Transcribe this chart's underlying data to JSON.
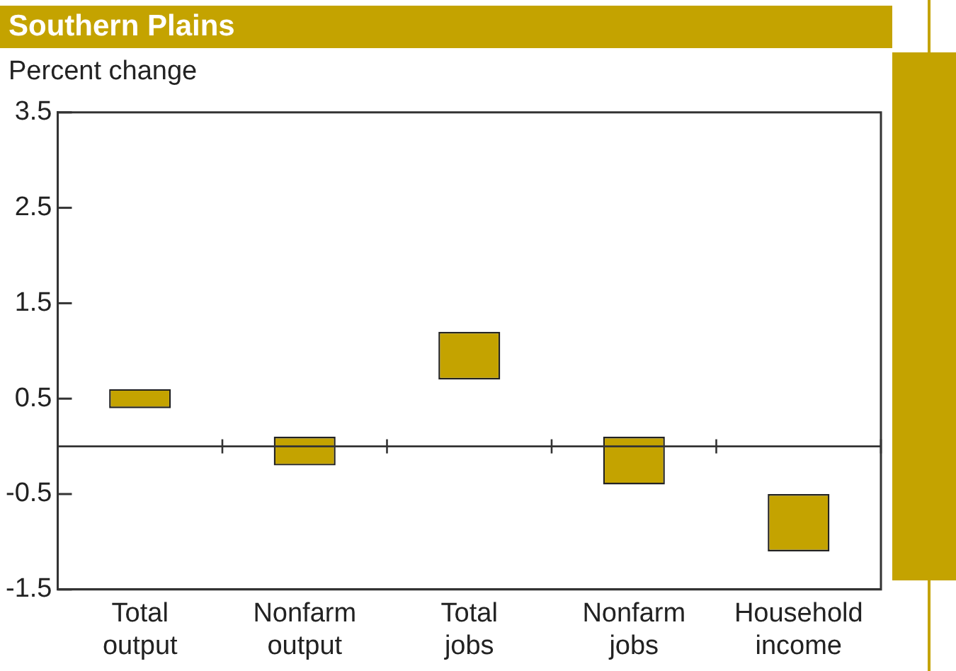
{
  "chart_data": {
    "type": "bar",
    "title": "Southern Plains",
    "ylabel": "Percent change",
    "categories": [
      "Total output",
      "Nonfarm output",
      "Total jobs",
      "Nonfarm jobs",
      "Household income"
    ],
    "values": [
      0.2,
      0.3,
      0.5,
      0.5,
      0.6
    ],
    "base": [
      0.4,
      -0.2,
      0.7,
      -0.4,
      -1.1
    ],
    "color": "#c4a300",
    "ylim": [
      -1.5,
      3.5
    ],
    "yticks": [
      3.5,
      2.5,
      1.5,
      0.5,
      -0.5,
      -1.5
    ],
    "ref_lines": [
      {
        "axis": "y",
        "value": 0
      }
    ],
    "grid": false,
    "legend": false
  }
}
